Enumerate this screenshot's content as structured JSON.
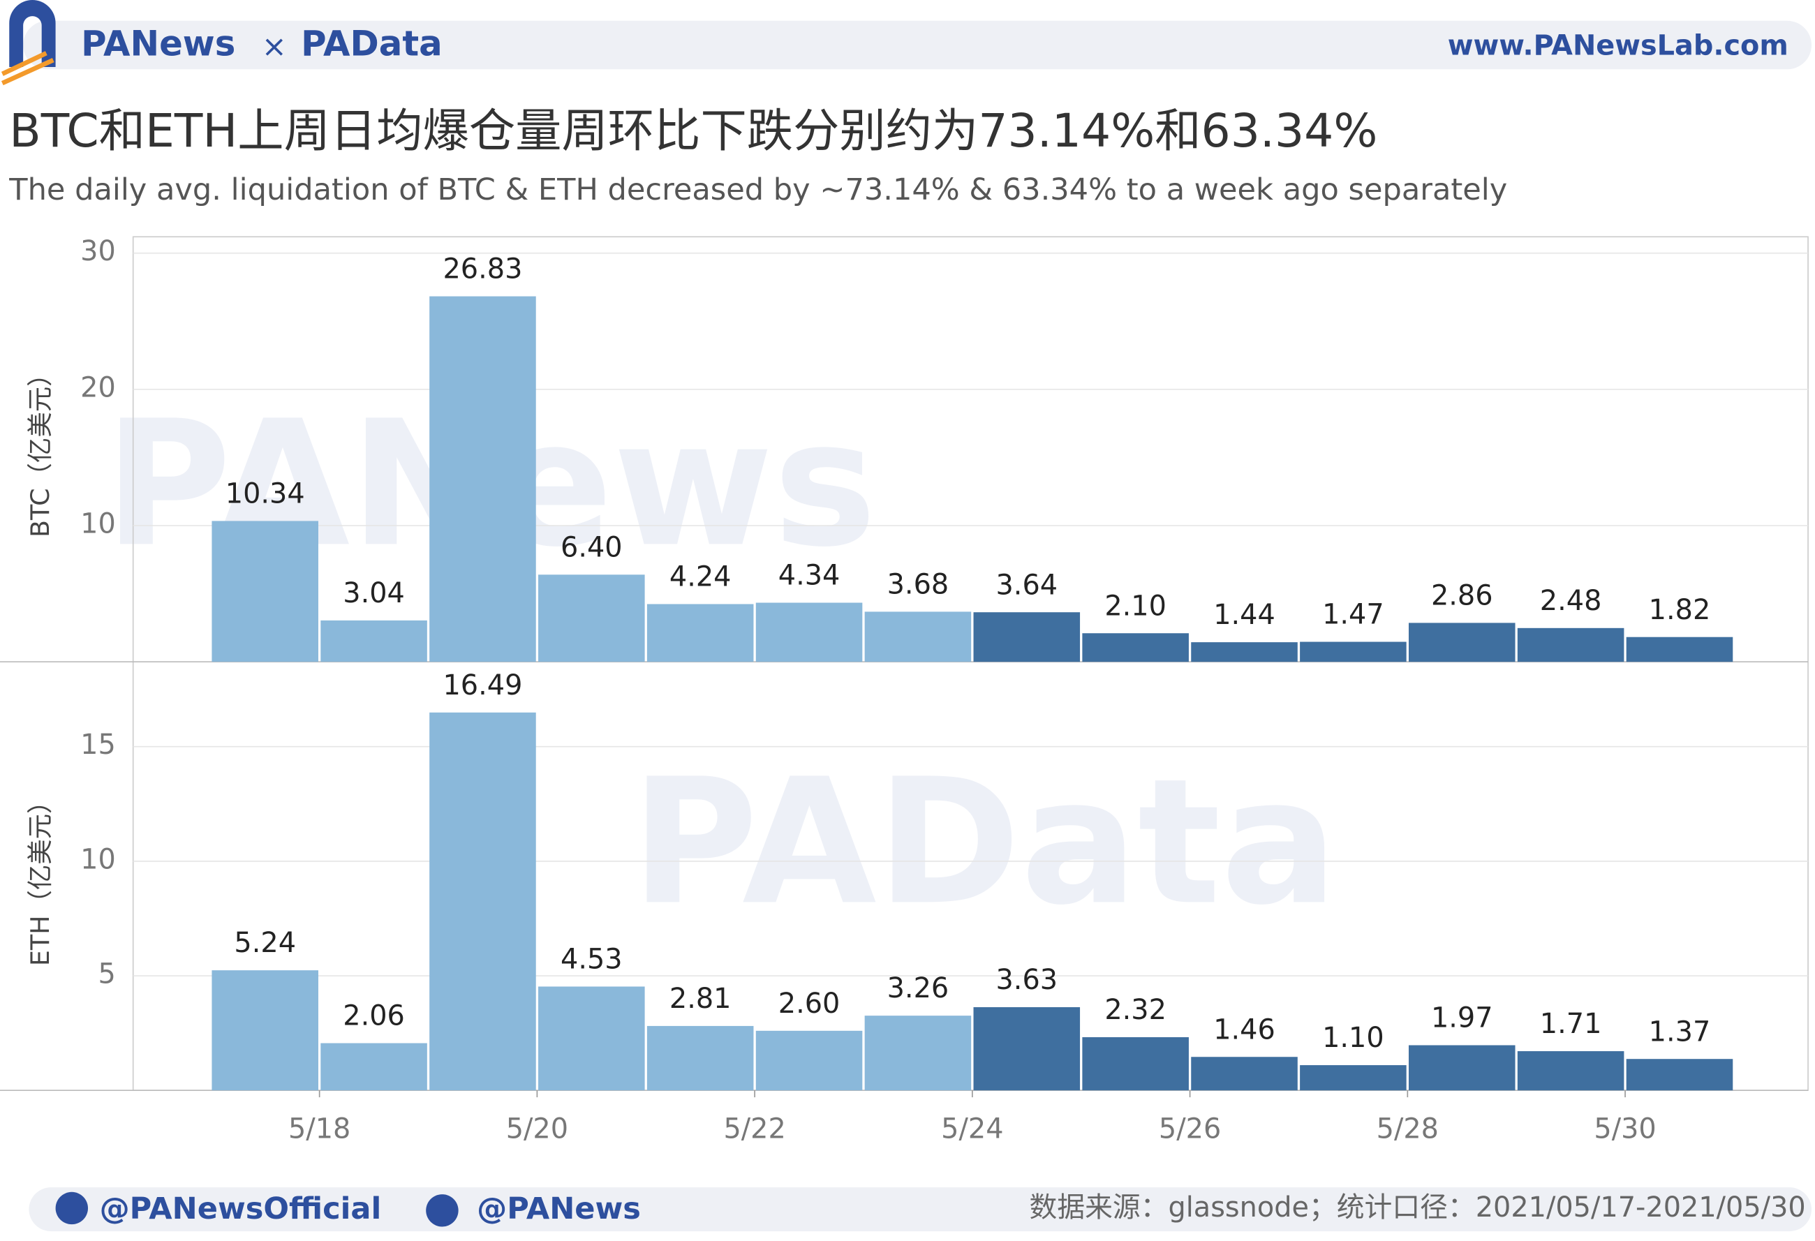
{
  "header": {
    "brand": "PANews",
    "times": "×",
    "brand2": "PAData",
    "site": "www.PANewsLab.com",
    "title": "BTC和ETH上周日均爆仓量周环比下跌分别约为73.14%和63.34%",
    "subtitle": "The daily avg. liquidation of BTC & ETH decreased by ~73.14% & 63.34% to a week ago separately"
  },
  "watermarks": [
    "PANews",
    "PAData"
  ],
  "chart_data": [
    {
      "type": "bar",
      "ylabel": "BTC（亿美元）",
      "ylim": [
        0,
        31.2
      ],
      "yticks": [
        10,
        20,
        30
      ],
      "grid": true,
      "values": [
        10.34,
        3.04,
        26.83,
        6.4,
        4.24,
        4.34,
        3.68,
        3.64,
        2.1,
        1.44,
        1.47,
        2.86,
        2.48,
        1.82
      ],
      "value_labels": [
        "10.34",
        "3.04",
        "26.83",
        "6.40",
        "4.24",
        "4.34",
        "3.68",
        "3.64",
        "2.10",
        "1.44",
        "1.47",
        "2.86",
        "2.48",
        "1.82"
      ],
      "colors": [
        "#8ab8da",
        "#8ab8da",
        "#8ab8da",
        "#8ab8da",
        "#8ab8da",
        "#8ab8da",
        "#8ab8da",
        "#3f6f9f",
        "#3f6f9f",
        "#3f6f9f",
        "#3f6f9f",
        "#3f6f9f",
        "#3f6f9f",
        "#3f6f9f"
      ]
    },
    {
      "type": "bar",
      "ylabel": "ETH（亿美元）",
      "ylim": [
        0,
        18.6
      ],
      "yticks": [
        5,
        10,
        15
      ],
      "grid": true,
      "categories": [
        null,
        "5/18",
        null,
        "5/20",
        null,
        "5/22",
        null,
        "5/24",
        null,
        "5/26",
        null,
        "5/28",
        null,
        "5/30"
      ],
      "values": [
        5.24,
        2.06,
        16.49,
        4.53,
        2.81,
        2.6,
        3.26,
        3.63,
        2.32,
        1.46,
        1.1,
        1.97,
        1.71,
        1.37
      ],
      "value_labels": [
        "5.24",
        "2.06",
        "16.49",
        "4.53",
        "2.81",
        "2.60",
        "3.26",
        "3.63",
        "2.32",
        "1.46",
        "1.10",
        "1.97",
        "1.71",
        "1.37"
      ],
      "colors": [
        "#8ab8da",
        "#8ab8da",
        "#8ab8da",
        "#8ab8da",
        "#8ab8da",
        "#8ab8da",
        "#8ab8da",
        "#3f6f9f",
        "#3f6f9f",
        "#3f6f9f",
        "#3f6f9f",
        "#3f6f9f",
        "#3f6f9f",
        "#3f6f9f"
      ]
    }
  ],
  "footer": {
    "twitter": "@PANewsOfficial",
    "weibo": "@PANews",
    "source": "数据来源：glassnode；统计口径：2021/05/17-2021/05/30"
  }
}
